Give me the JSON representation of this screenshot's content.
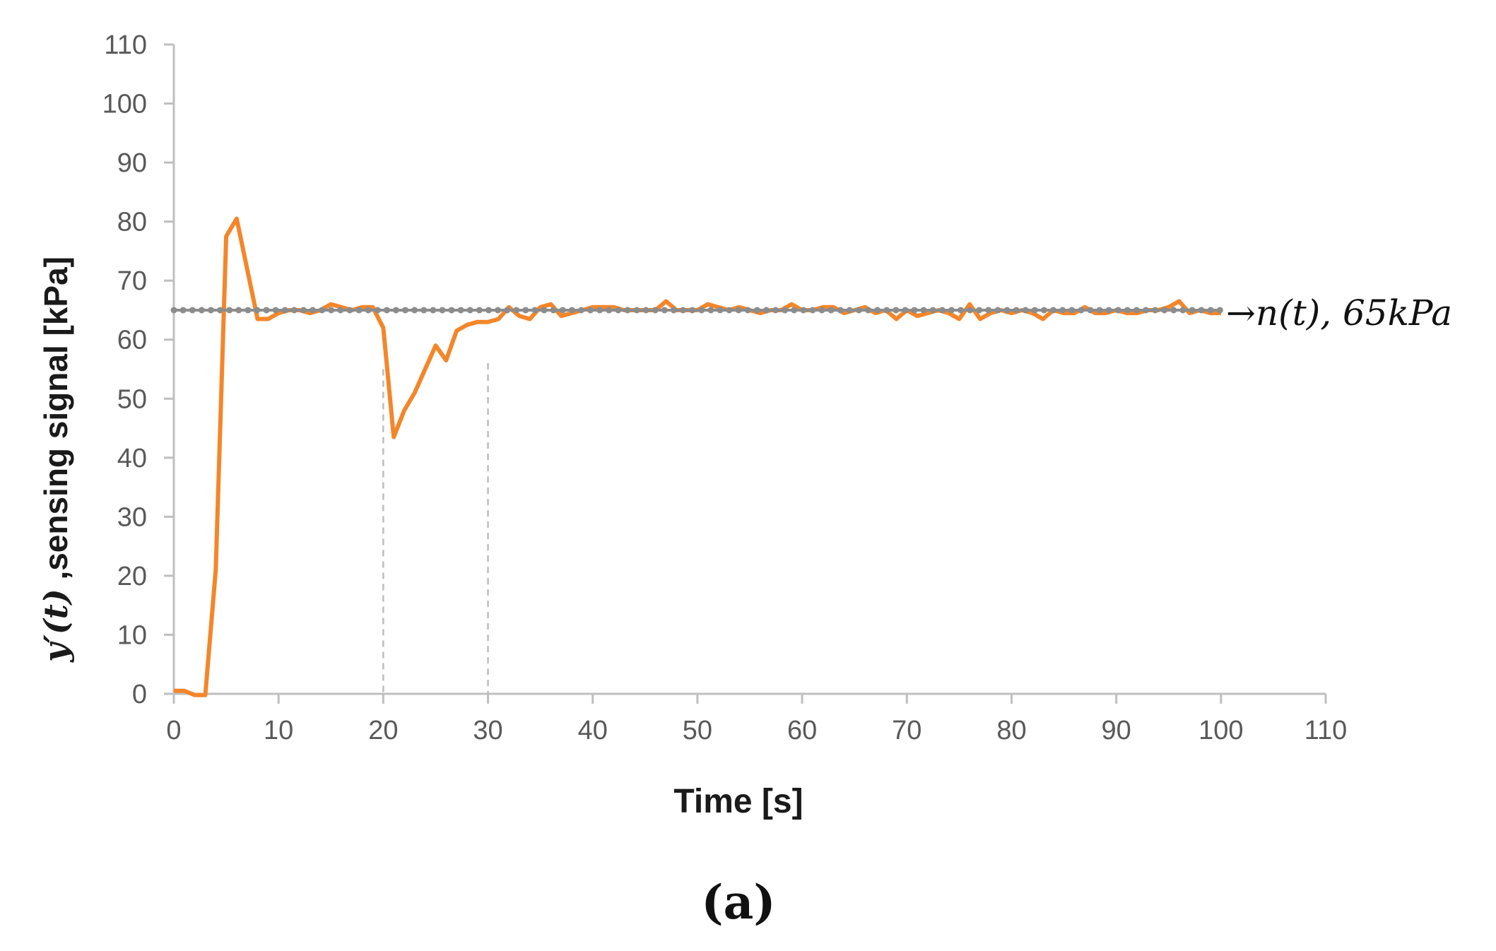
{
  "chart_data": {
    "type": "line",
    "xlabel": "Time [s]",
    "ylabel_math": "y′(t)",
    "ylabel_text": " ,sensing signal [kPa]",
    "xlim": [
      0,
      110
    ],
    "ylim": [
      0,
      110
    ],
    "xticks": [
      "0",
      "10",
      "20",
      "30",
      "40",
      "50",
      "60",
      "70",
      "80",
      "90",
      "100",
      "110"
    ],
    "yticks": [
      "0",
      "10",
      "20",
      "30",
      "40",
      "50",
      "60",
      "70",
      "80",
      "90",
      "100",
      "110"
    ],
    "grid": false,
    "legend": "none",
    "caption": "(a)",
    "annotation": "→n(t), 65kPa",
    "vertical_markers": [
      {
        "x": 20,
        "y_top": 55
      },
      {
        "x": 30,
        "y_top": 56
      }
    ],
    "series": [
      {
        "name": "y′(t)",
        "color": "#f4862a",
        "x": [
          0,
          1,
          2,
          3,
          4,
          5,
          6,
          7,
          8,
          9,
          10,
          11,
          12,
          13,
          14,
          15,
          16,
          17,
          18,
          19,
          20,
          21,
          22,
          23,
          24,
          25,
          26,
          27,
          28,
          29,
          30,
          31,
          32,
          33,
          34,
          35,
          36,
          37,
          38,
          39,
          40,
          41,
          42,
          43,
          44,
          45,
          46,
          47,
          48,
          49,
          50,
          51,
          52,
          53,
          54,
          55,
          56,
          57,
          58,
          59,
          60,
          61,
          62,
          63,
          64,
          65,
          66,
          67,
          68,
          69,
          70,
          71,
          72,
          73,
          74,
          75,
          76,
          77,
          78,
          79,
          80,
          81,
          82,
          83,
          84,
          85,
          86,
          87,
          88,
          89,
          90,
          91,
          92,
          93,
          94,
          95,
          96,
          97,
          98,
          99,
          100
        ],
        "values": [
          0.5,
          0.5,
          -0.2,
          -0.2,
          21,
          77.5,
          80.5,
          72,
          63.5,
          63.5,
          64.5,
          65,
          65,
          64.5,
          65,
          66,
          65.5,
          65,
          65.5,
          65.5,
          62,
          43.5,
          48,
          51,
          55,
          59,
          56.5,
          61.5,
          62.5,
          63,
          63,
          63.5,
          65.5,
          64,
          63.5,
          65.5,
          66,
          64,
          64.5,
          65,
          65.5,
          65.5,
          65.5,
          65,
          65,
          65,
          65,
          66.5,
          65,
          65,
          65,
          66,
          65.5,
          65,
          65.5,
          65,
          64.5,
          65,
          65,
          66,
          65,
          65,
          65.5,
          65.5,
          64.5,
          65,
          65.5,
          64.5,
          65,
          63.5,
          65,
          64,
          64.5,
          65,
          64.5,
          63.5,
          66,
          63.5,
          64.5,
          65,
          64.5,
          65,
          64.5,
          63.5,
          65,
          64.5,
          64.5,
          65.5,
          64.5,
          64.5,
          65,
          64.5,
          64.5,
          65,
          65,
          65.5,
          66.5,
          64.5,
          65,
          64.5,
          64.5
        ]
      },
      {
        "name": "n(t)",
        "color": "#8c8c8c",
        "x": [
          0,
          100
        ],
        "values": [
          65,
          65
        ]
      }
    ]
  }
}
